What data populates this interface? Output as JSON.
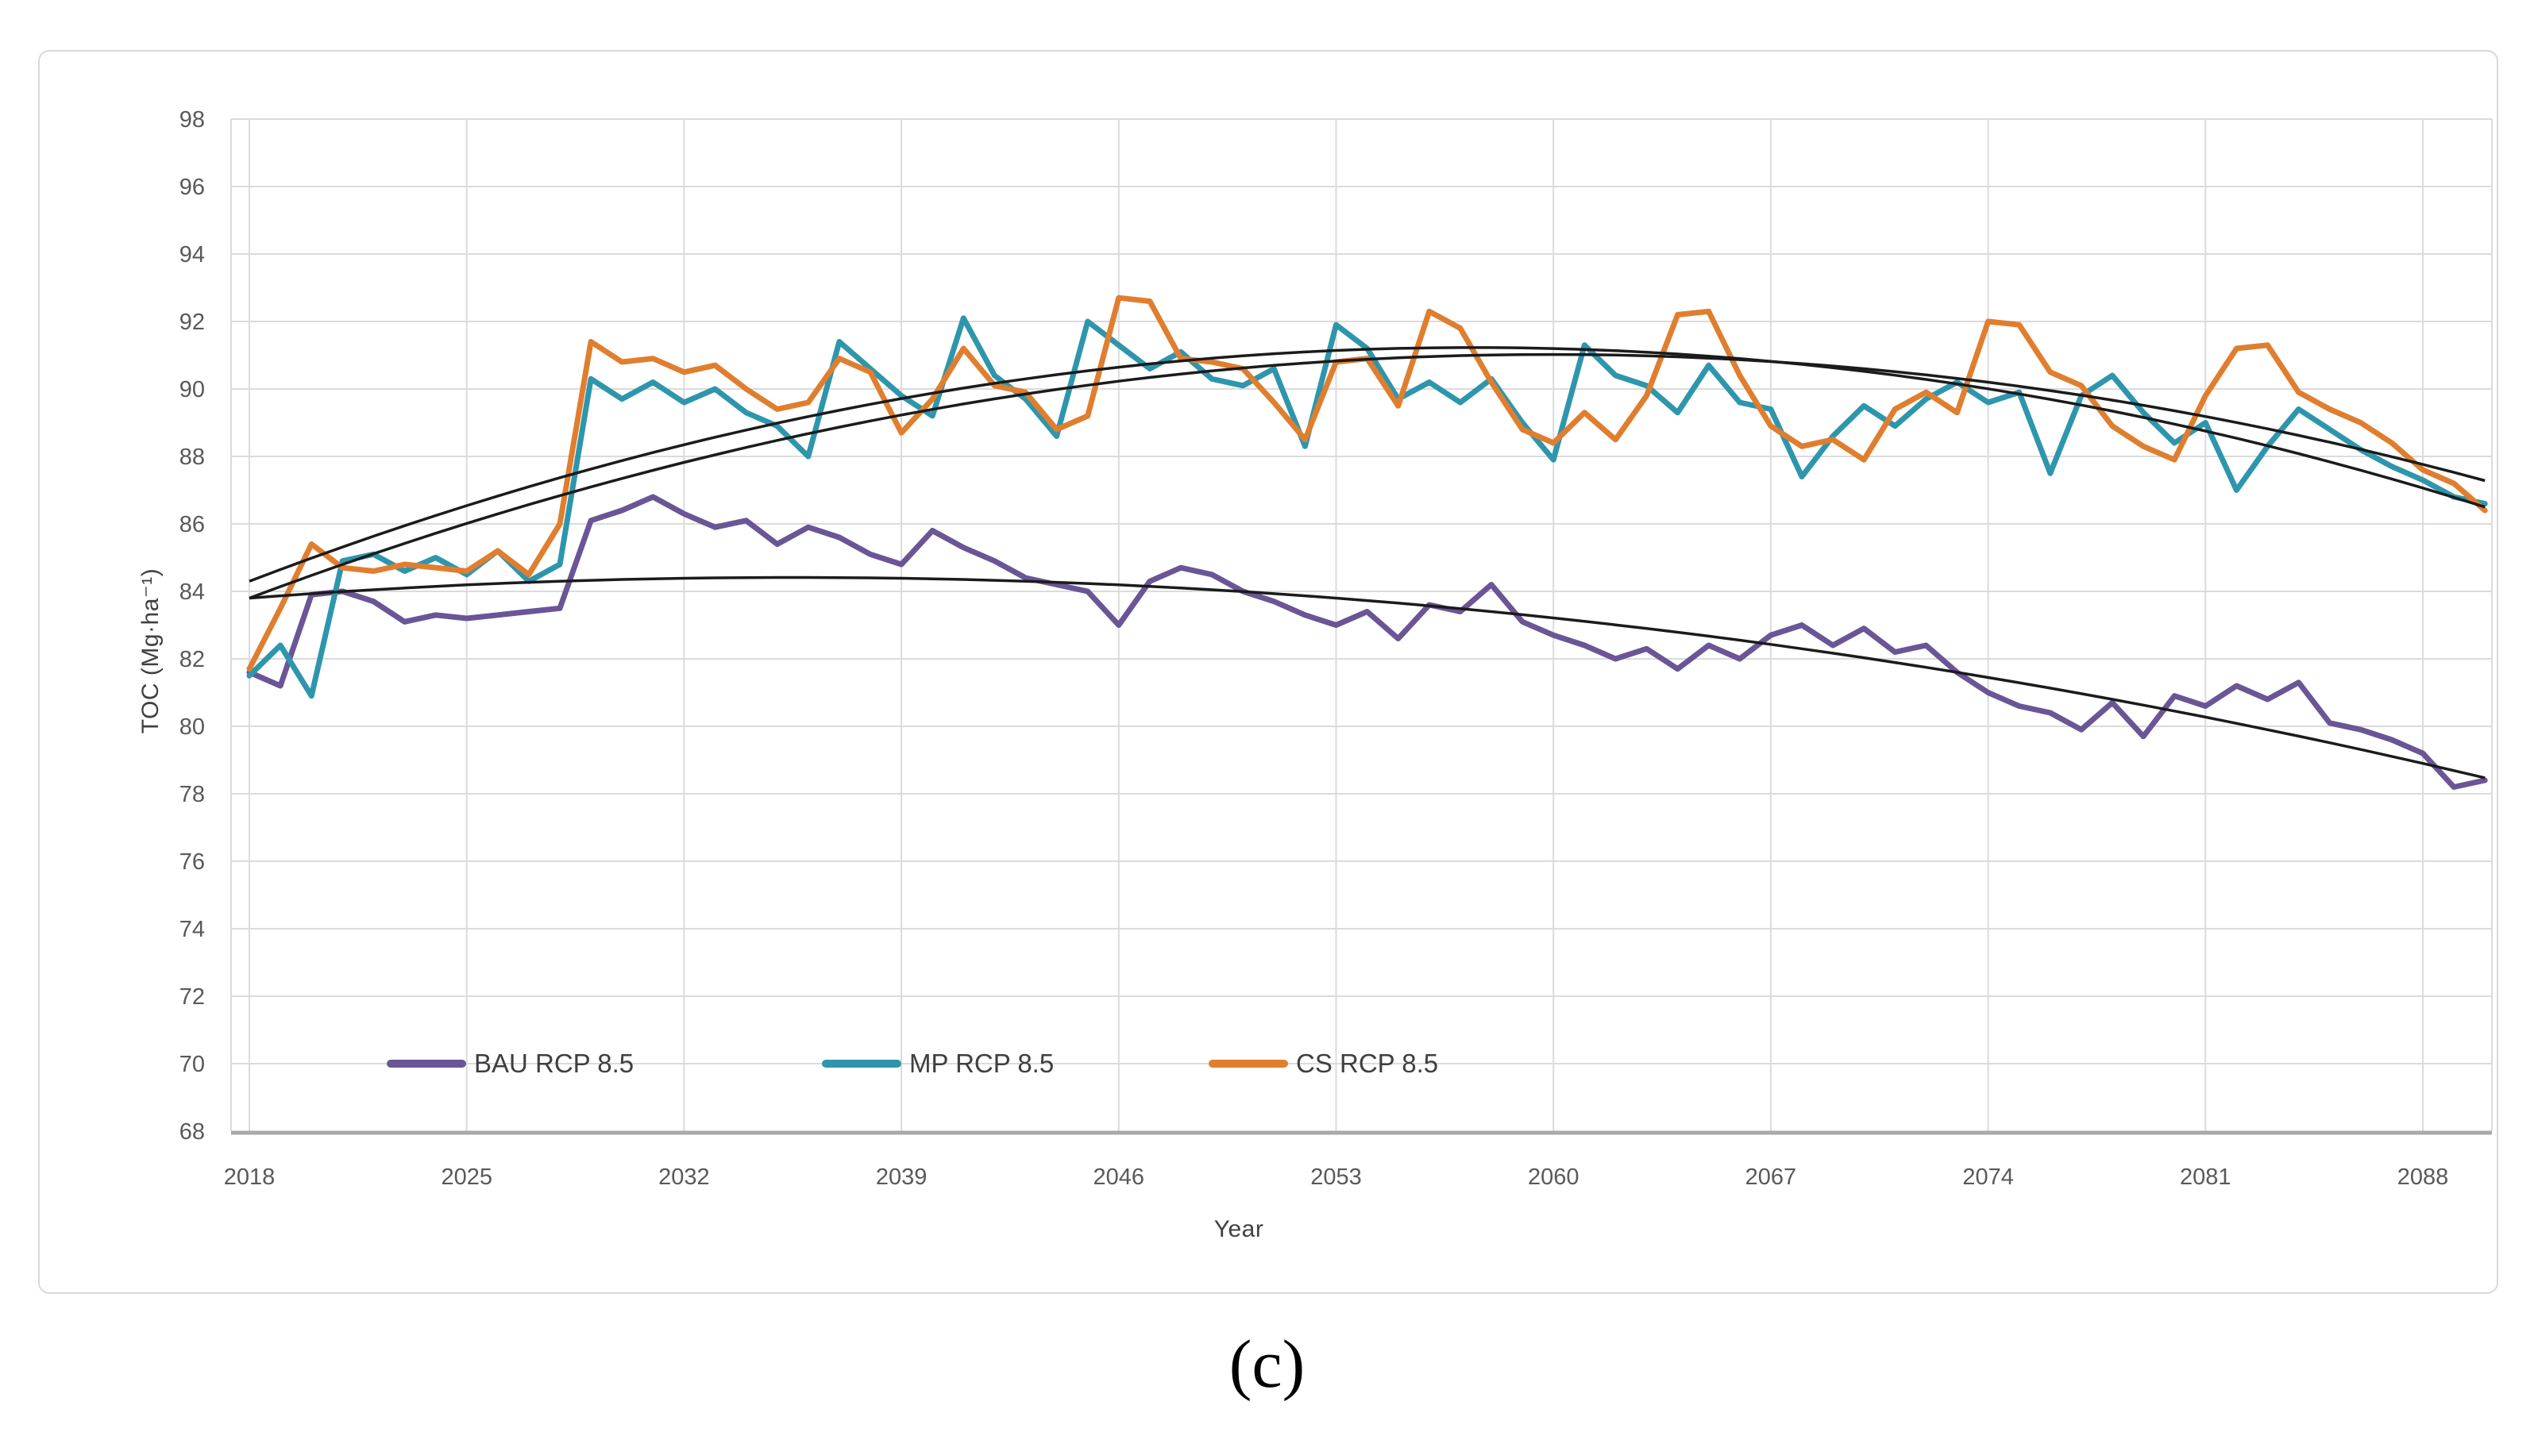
{
  "figure": {
    "caption": "(c)"
  },
  "style": {
    "background": "#ffffff",
    "frame_border": "#d8d8d8",
    "gridline": "#dbdbdb",
    "axis_line": "#a9a9a9",
    "tick_text": "#595959",
    "legend_text": "#3f3f3f",
    "trendline": "#1b1b1b"
  },
  "chart_data": {
    "type": "line",
    "title": "",
    "xlabel": "Year",
    "ylabel": "TOC (Mg·ha⁻¹)",
    "grid": true,
    "legend_position": "bottom-inside",
    "x_ticks": [
      2018,
      2025,
      2032,
      2039,
      2046,
      2053,
      2060,
      2067,
      2074,
      2081,
      2088
    ],
    "ylim": [
      68,
      98
    ],
    "y_tick_step": 2,
    "years": [
      2018,
      2019,
      2020,
      2021,
      2022,
      2023,
      2024,
      2025,
      2026,
      2027,
      2028,
      2029,
      2030,
      2031,
      2032,
      2033,
      2034,
      2035,
      2036,
      2037,
      2038,
      2039,
      2040,
      2041,
      2042,
      2043,
      2044,
      2045,
      2046,
      2047,
      2048,
      2049,
      2050,
      2051,
      2052,
      2053,
      2054,
      2055,
      2056,
      2057,
      2058,
      2059,
      2060,
      2061,
      2062,
      2063,
      2064,
      2065,
      2066,
      2067,
      2068,
      2069,
      2070,
      2071,
      2072,
      2073,
      2074,
      2075,
      2076,
      2077,
      2078,
      2079,
      2080,
      2081,
      2082,
      2083,
      2084,
      2085,
      2086,
      2087,
      2088,
      2089,
      2090
    ],
    "series": [
      {
        "name": "BAU RCP 8.5",
        "color": "#6a5596",
        "values": [
          81.6,
          81.2,
          83.9,
          84.0,
          83.7,
          83.1,
          83.3,
          83.2,
          83.3,
          83.4,
          83.5,
          86.1,
          86.4,
          86.8,
          86.3,
          85.9,
          86.1,
          85.4,
          85.9,
          85.6,
          85.1,
          84.8,
          85.8,
          85.3,
          84.9,
          84.4,
          84.2,
          84.0,
          83.0,
          84.3,
          84.7,
          84.5,
          84.0,
          83.7,
          83.3,
          83.0,
          83.4,
          82.6,
          83.6,
          83.4,
          84.2,
          83.1,
          82.7,
          82.4,
          82.0,
          82.3,
          81.7,
          82.4,
          82.0,
          82.7,
          83.0,
          82.4,
          82.9,
          82.2,
          82.4,
          81.6,
          81.0,
          80.6,
          80.4,
          79.9,
          80.7,
          79.7,
          80.9,
          80.6,
          81.2,
          80.8,
          81.3,
          80.1,
          79.9,
          79.6,
          79.2,
          78.2,
          78.4
        ]
      },
      {
        "name": "MP RCP 8.5",
        "color": "#2e96ac",
        "values": [
          81.5,
          82.4,
          80.9,
          84.9,
          85.1,
          84.6,
          85.0,
          84.5,
          85.2,
          84.3,
          84.8,
          90.3,
          89.7,
          90.2,
          89.6,
          90.0,
          89.3,
          88.9,
          88.0,
          91.4,
          90.6,
          89.8,
          89.2,
          92.1,
          90.4,
          89.7,
          88.6,
          92.0,
          91.3,
          90.6,
          91.1,
          90.3,
          90.1,
          90.6,
          88.3,
          91.9,
          91.2,
          89.7,
          90.2,
          89.6,
          90.3,
          89.0,
          87.9,
          91.3,
          90.4,
          90.1,
          89.3,
          90.7,
          89.6,
          89.4,
          87.4,
          88.6,
          89.5,
          88.9,
          89.7,
          90.2,
          89.6,
          89.9,
          87.5,
          89.8,
          90.4,
          89.3,
          88.4,
          89.0,
          87.0,
          88.3,
          89.4,
          88.8,
          88.2,
          87.7,
          87.3,
          86.8,
          86.6
        ]
      },
      {
        "name": "CS RCP 8.5",
        "color": "#e07e2f",
        "values": [
          81.7,
          83.5,
          85.4,
          84.7,
          84.6,
          84.8,
          84.7,
          84.6,
          85.2,
          84.5,
          86.0,
          91.4,
          90.8,
          90.9,
          90.5,
          90.7,
          90.0,
          89.4,
          89.6,
          90.9,
          90.5,
          88.7,
          89.7,
          91.2,
          90.1,
          89.9,
          88.8,
          89.2,
          92.7,
          92.6,
          90.9,
          90.8,
          90.6,
          89.6,
          88.5,
          90.8,
          90.9,
          89.5,
          92.3,
          91.8,
          90.2,
          88.8,
          88.4,
          89.3,
          88.5,
          89.8,
          92.2,
          92.3,
          90.4,
          88.9,
          88.3,
          88.5,
          87.9,
          89.4,
          89.9,
          89.3,
          92.0,
          91.9,
          90.5,
          90.1,
          88.9,
          88.3,
          87.9,
          89.8,
          91.2,
          91.3,
          89.9,
          89.4,
          89.0,
          88.4,
          87.6,
          87.2,
          86.4
        ]
      }
    ],
    "trendlines": [
      {
        "for": "BAU RCP 8.5",
        "type": "polynomial-2",
        "coeffs_t_is_year_minus_2018": [
          83.8,
          0.07,
          -0.002
        ]
      },
      {
        "for": "MP RCP 8.5",
        "type": "polynomial-2",
        "coeffs_t_is_year_minus_2018": [
          83.8,
          0.345,
          -0.00412
        ]
      },
      {
        "for": "CS RCP 8.5",
        "type": "polynomial-2",
        "coeffs_t_is_year_minus_2018": [
          84.3,
          0.3514,
          -0.004456
        ]
      }
    ]
  }
}
